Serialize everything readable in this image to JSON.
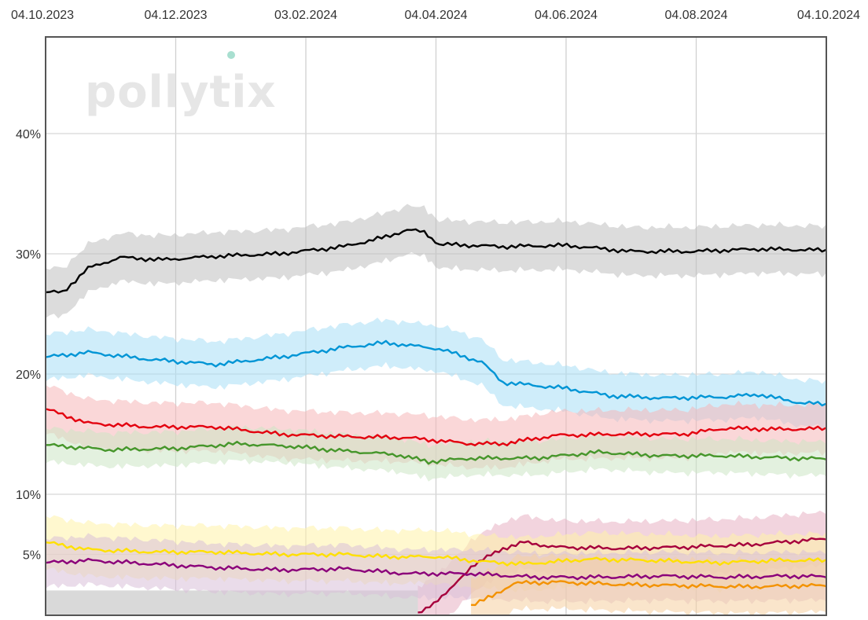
{
  "chart_data": {
    "type": "line",
    "title": "",
    "xlabel": "",
    "ylabel": "",
    "x_ticks": [
      "04.10.2023",
      "04.12.2023",
      "03.02.2024",
      "04.04.2024",
      "04.06.2024",
      "04.08.2024",
      "04.10.2024"
    ],
    "x_range": [
      "04.10.2023",
      "04.10.2024"
    ],
    "y_ticks": [
      {
        "value": 40,
        "label": "40%"
      },
      {
        "value": 30,
        "label": "30%"
      },
      {
        "value": 20,
        "label": "20%"
      },
      {
        "value": 10,
        "label": "10%"
      },
      {
        "value": 5,
        "label": "5%"
      }
    ],
    "ylim": [
      0,
      50
    ],
    "grid": true,
    "legend": "none",
    "watermark": "pollytix",
    "series": [
      {
        "color": "#000000",
        "band": "#bfbfbf",
        "band_width": 2.0,
        "points": [
          [
            0,
            26.8
          ],
          [
            8,
            26.8
          ],
          [
            20,
            28.8
          ],
          [
            35,
            29.7
          ],
          [
            55,
            29.5
          ],
          [
            80,
            29.8
          ],
          [
            110,
            30.0
          ],
          [
            140,
            30.6
          ],
          [
            160,
            31.4
          ],
          [
            170,
            32.0
          ],
          [
            178,
            31.8
          ],
          [
            185,
            30.8
          ],
          [
            215,
            30.6
          ],
          [
            245,
            30.7
          ],
          [
            275,
            30.2
          ],
          [
            305,
            30.2
          ],
          [
            335,
            30.4
          ],
          [
            365,
            30.3
          ],
          [
            395,
            30.0
          ],
          [
            425,
            30.6
          ],
          [
            455,
            30.4
          ],
          [
            485,
            30.2
          ],
          [
            515,
            30.5
          ],
          [
            545,
            30.9
          ],
          [
            575,
            30.5
          ],
          [
            590,
            31.0
          ],
          [
            600,
            31.0
          ],
          [
            620,
            31.1
          ],
          [
            635,
            32.3
          ],
          [
            645,
            32.5
          ],
          [
            655,
            32.0
          ],
          [
            667,
            31.5
          ]
        ]
      },
      {
        "color": "#0095d5",
        "band": "#a8def5",
        "band_width": 1.9,
        "points": [
          [
            0,
            21.4
          ],
          [
            20,
            21.8
          ],
          [
            50,
            21.2
          ],
          [
            80,
            20.8
          ],
          [
            110,
            21.4
          ],
          [
            140,
            22.2
          ],
          [
            160,
            22.6
          ],
          [
            185,
            22.1
          ],
          [
            205,
            21.0
          ],
          [
            215,
            19.3
          ],
          [
            245,
            18.8
          ],
          [
            265,
            18.2
          ],
          [
            290,
            18.0
          ],
          [
            320,
            18.1
          ],
          [
            335,
            18.3
          ],
          [
            355,
            17.6
          ],
          [
            375,
            17.4
          ],
          [
            395,
            16.9
          ],
          [
            405,
            16.2
          ],
          [
            425,
            16.4
          ],
          [
            455,
            16.4
          ],
          [
            485,
            17.0
          ],
          [
            515,
            17.4
          ],
          [
            545,
            17.1
          ],
          [
            565,
            17.6
          ],
          [
            590,
            18.0
          ],
          [
            620,
            17.9
          ],
          [
            645,
            18.2
          ],
          [
            667,
            18.2
          ]
        ]
      },
      {
        "color": "#e3000f",
        "band": "#f5b6b8",
        "band_width": 2.0,
        "points": [
          [
            0,
            17.1
          ],
          [
            20,
            15.9
          ],
          [
            50,
            15.6
          ],
          [
            80,
            15.6
          ],
          [
            110,
            15.0
          ],
          [
            140,
            14.8
          ],
          [
            170,
            14.7
          ],
          [
            200,
            14.2
          ],
          [
            215,
            14.2
          ],
          [
            240,
            14.9
          ],
          [
            270,
            15.0
          ],
          [
            300,
            15.0
          ],
          [
            320,
            15.5
          ],
          [
            345,
            15.4
          ],
          [
            375,
            15.5
          ],
          [
            405,
            15.6
          ],
          [
            435,
            15.0
          ],
          [
            455,
            15.2
          ],
          [
            475,
            14.7
          ],
          [
            505,
            14.8
          ],
          [
            535,
            15.0
          ],
          [
            565,
            15.1
          ],
          [
            595,
            14.8
          ],
          [
            620,
            14.8
          ],
          [
            640,
            14.5
          ],
          [
            655,
            15.0
          ],
          [
            667,
            15.5
          ]
        ]
      },
      {
        "color": "#46962b",
        "band": "#cce6c4",
        "band_width": 1.4,
        "points": [
          [
            0,
            14.1
          ],
          [
            30,
            13.7
          ],
          [
            60,
            13.8
          ],
          [
            90,
            14.2
          ],
          [
            115,
            14.0
          ],
          [
            140,
            13.6
          ],
          [
            165,
            13.3
          ],
          [
            180,
            12.7
          ],
          [
            200,
            13.0
          ],
          [
            230,
            13.0
          ],
          [
            260,
            13.5
          ],
          [
            290,
            13.2
          ],
          [
            320,
            13.2
          ],
          [
            350,
            13.0
          ],
          [
            380,
            12.9
          ],
          [
            410,
            12.5
          ],
          [
            435,
            11.9
          ],
          [
            465,
            11.5
          ],
          [
            495,
            11.2
          ],
          [
            520,
            10.8
          ],
          [
            530,
            11.4
          ],
          [
            560,
            11.0
          ],
          [
            590,
            10.8
          ],
          [
            620,
            10.7
          ],
          [
            650,
            10.5
          ],
          [
            667,
            10.6
          ]
        ]
      },
      {
        "color": "#a6003c",
        "band": "#e8b0c3",
        "band_width": 2.2,
        "points": [
          [
            175,
            0.0
          ],
          [
            190,
            2.0
          ],
          [
            200,
            4.0
          ],
          [
            215,
            5.5
          ],
          [
            225,
            6.0
          ],
          [
            240,
            5.6
          ],
          [
            270,
            5.5
          ],
          [
            300,
            5.6
          ],
          [
            330,
            5.8
          ],
          [
            360,
            6.2
          ],
          [
            390,
            6.6
          ],
          [
            410,
            6.8
          ],
          [
            440,
            7.2
          ],
          [
            480,
            7.6
          ],
          [
            510,
            7.9
          ],
          [
            540,
            8.2
          ],
          [
            570,
            8.4
          ],
          [
            610,
            8.2
          ],
          [
            640,
            8.1
          ],
          [
            667,
            8.1
          ]
        ]
      },
      {
        "color": "#ffe000",
        "band": "#fff3a8",
        "band_width": 2.2,
        "points": [
          [
            0,
            6.0
          ],
          [
            20,
            5.4
          ],
          [
            50,
            5.2
          ],
          [
            80,
            5.2
          ],
          [
            110,
            5.0
          ],
          [
            140,
            5.0
          ],
          [
            160,
            4.8
          ],
          [
            185,
            4.8
          ],
          [
            205,
            4.4
          ],
          [
            225,
            4.2
          ],
          [
            255,
            4.6
          ],
          [
            285,
            4.5
          ],
          [
            315,
            4.3
          ],
          [
            345,
            4.5
          ],
          [
            375,
            4.5
          ],
          [
            405,
            4.8
          ],
          [
            435,
            4.6
          ],
          [
            475,
            4.8
          ],
          [
            515,
            4.9
          ],
          [
            545,
            4.8
          ],
          [
            575,
            4.9
          ],
          [
            595,
            4.5
          ],
          [
            615,
            3.9
          ],
          [
            635,
            3.8
          ],
          [
            667,
            3.8
          ]
        ]
      },
      {
        "color": "#8b007a",
        "band": "#d8c0d8",
        "band_width": 2.0,
        "points": [
          [
            0,
            4.3
          ],
          [
            20,
            4.5
          ],
          [
            50,
            4.2
          ],
          [
            80,
            3.9
          ],
          [
            110,
            3.7
          ],
          [
            140,
            3.8
          ],
          [
            170,
            3.4
          ],
          [
            200,
            3.4
          ],
          [
            230,
            3.1
          ],
          [
            260,
            3.1
          ],
          [
            290,
            3.2
          ],
          [
            320,
            3.1
          ],
          [
            350,
            3.2
          ],
          [
            380,
            3.1
          ],
          [
            400,
            3.1
          ],
          [
            420,
            2.9
          ],
          [
            440,
            2.6
          ],
          [
            470,
            2.6
          ],
          [
            500,
            2.8
          ],
          [
            530,
            2.7
          ],
          [
            560,
            2.7
          ],
          [
            590,
            2.5
          ],
          [
            620,
            2.5
          ],
          [
            640,
            2.2
          ],
          [
            667,
            2.2
          ]
        ]
      },
      {
        "color": "#f39200",
        "band": "#f5cfa0",
        "band_width": 2.2,
        "points": [
          [
            200,
            0.8
          ],
          [
            210,
            1.5
          ],
          [
            220,
            2.6
          ],
          [
            240,
            2.7
          ],
          [
            270,
            2.5
          ],
          [
            300,
            2.4
          ],
          [
            330,
            2.3
          ],
          [
            360,
            2.4
          ],
          [
            390,
            2.4
          ],
          [
            400,
            2.1
          ],
          [
            420,
            1.9
          ],
          [
            450,
            1.9
          ],
          [
            480,
            1.7
          ],
          [
            510,
            1.6
          ],
          [
            540,
            1.7
          ],
          [
            570,
            1.6
          ],
          [
            600,
            1.6
          ],
          [
            630,
            1.5
          ],
          [
            667,
            1.5
          ]
        ]
      }
    ],
    "grey_area": {
      "color": "#d9d9d9",
      "x_end": 175,
      "y_top": 2.0
    }
  }
}
